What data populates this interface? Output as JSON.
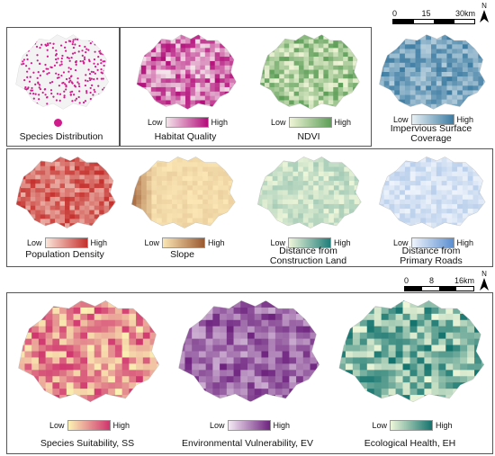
{
  "top_scale": {
    "ticks": [
      "0",
      "15",
      "30km"
    ]
  },
  "bottom_scale": {
    "ticks": [
      "0",
      "8",
      "16km"
    ]
  },
  "north": "N",
  "legend": {
    "low": "Low",
    "high": "High"
  },
  "panels": [
    {
      "id": "species",
      "label": "Species Distribution",
      "color": "#d11a8c"
    },
    {
      "id": "habitat",
      "label": "Habitat Quality",
      "low": "#f4e4ea",
      "high": "#b30d7a"
    },
    {
      "id": "ndvi",
      "label": "NDVI",
      "low": "#eef4d6",
      "high": "#5d9e58"
    },
    {
      "id": "impervious",
      "label": "Impervious Surface\nCoverage",
      "low": "#e8f1f5",
      "high": "#3c7ba2"
    },
    {
      "id": "population",
      "label": "Population Density",
      "low": "#fbe6da",
      "high": "#c5302d"
    },
    {
      "id": "slope",
      "label": "Slope",
      "low": "#fbe6b4",
      "high": "#9b5930"
    },
    {
      "id": "construction",
      "label": "Distance from\nConstruction Land",
      "low": "#eef6d9",
      "high": "#1f7e7b"
    },
    {
      "id": "roads",
      "label": "Distance from\nPrimary Roads",
      "low": "#eef3fb",
      "high": "#5a8ed0"
    },
    {
      "id": "ss",
      "label": "Species Suitability, SS",
      "low": "#fcf2b4",
      "high": "#d0346e"
    },
    {
      "id": "ev",
      "label": "Environmental Vulnerability, EV",
      "low": "#f4e9f4",
      "high": "#6e237f"
    },
    {
      "id": "eh",
      "label": "Ecological Health, EH",
      "low": "#eef7d9",
      "high": "#14736e"
    }
  ]
}
